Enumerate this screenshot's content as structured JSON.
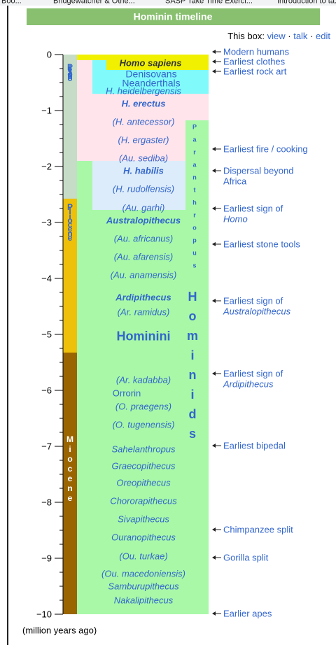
{
  "browser_tabs": [
    "Boo...",
    "Bridgewatcher & Othe...",
    "SASP Take Time Exerci...",
    "Introduction to ta..."
  ],
  "header": {
    "title": "Hominin timeline",
    "box_prefix": "This box:",
    "links": [
      "view",
      "talk",
      "edit"
    ],
    "separator": "·"
  },
  "axis": {
    "ticks": [
      0,
      {
        "value": -1,
        "label": "−1"
      },
      {
        "value": -2,
        "label": "−2"
      },
      {
        "value": -3,
        "label": "−3"
      },
      {
        "value": -4,
        "label": "−4"
      },
      {
        "value": -5,
        "label": "−5"
      },
      {
        "value": -6,
        "label": "−6"
      },
      {
        "value": -7,
        "label": "−7"
      },
      {
        "value": -8,
        "label": "−8"
      },
      {
        "value": -9,
        "label": "−9"
      },
      {
        "value": -10,
        "label": "−10"
      }
    ],
    "unit_label": "(million years ago)"
  },
  "epochs": [
    "Pleistocene",
    "Pliocene",
    "Miocene"
  ],
  "groups": [
    "Paranthropus",
    "Hominids"
  ],
  "taxa": [
    "Homo sapiens",
    "Denisovans",
    "Neanderthals",
    "H. heidelbergensis",
    "H. erectus",
    "(H. antecessor)",
    "(H. ergaster)",
    "(Au. sediba)",
    "H. habilis",
    "(H. rudolfensis)",
    "(Au. garhi)",
    "Australopithecus",
    "(Au. africanus)",
    "(Au. afarensis)",
    "(Au. anamensis)",
    "Ardipithecus",
    "(Ar. ramidus)",
    "Hominini",
    "(Ar. kadabba)",
    "Orrorin",
    "(O. praegens)",
    "(O. tugenensis)",
    "Sahelanthropus",
    "Graecopithecus",
    "Oreopithecus",
    "Chororapithecus",
    "Sivapithecus",
    "Ouranopithecus",
    "(Ou. turkae)",
    "(Ou. macedoniensis)",
    "Samburupithecus",
    "Nakalipithecus"
  ],
  "events": [
    [
      "Modern humans"
    ],
    [
      "Earliest clothes"
    ],
    [
      "Earliest rock art"
    ],
    [
      "Earliest fire / cooking"
    ],
    [
      "Dispersal beyond",
      "Africa"
    ],
    [
      "Earliest sign of",
      "Homo"
    ],
    [
      "Earliest stone tools"
    ],
    [
      "Earliest sign of",
      "Australopithecus"
    ],
    [
      "Earliest sign of",
      "Ardipithecus"
    ],
    [
      "Earliest bipedal"
    ],
    [
      "Chimpanzee split"
    ],
    [
      "Gorilla split"
    ],
    [
      "Earlier apes"
    ]
  ]
}
